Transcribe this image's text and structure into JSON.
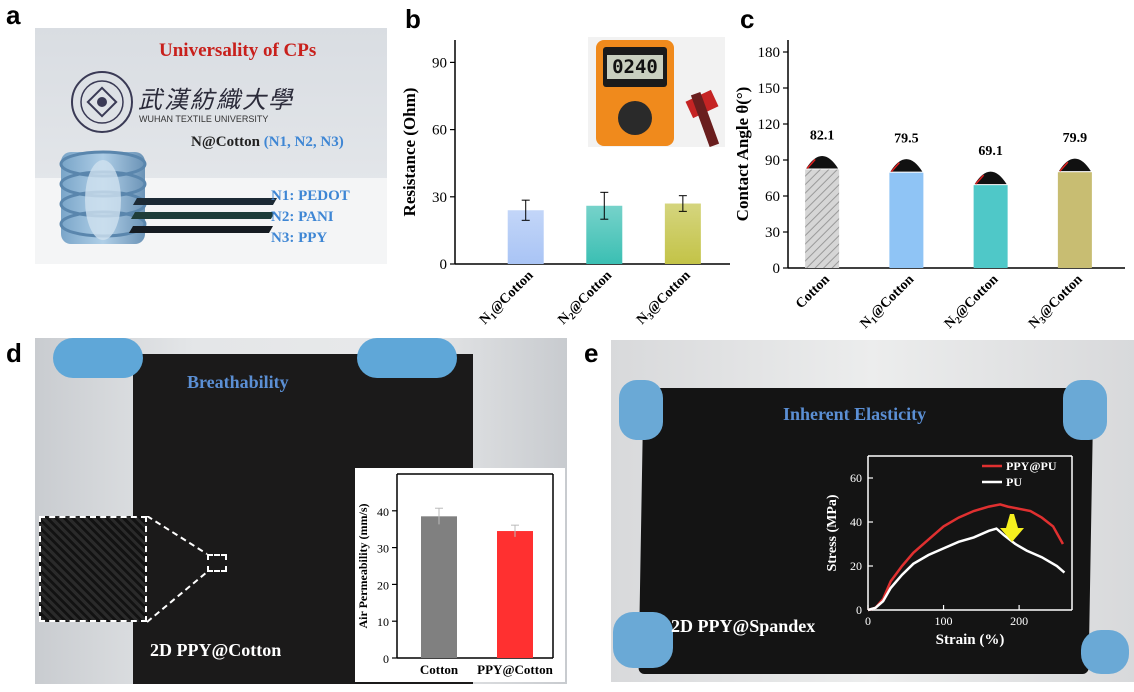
{
  "panels": {
    "a": {
      "letter": "a",
      "title": "Universality of CPs",
      "university_cn": "武漢紡織大學",
      "university_en": "WUHAN TEXTILE UNIVERSITY",
      "sample_label": "N@Cotton",
      "sample_sub": "(N1, N2, N3)",
      "legend": [
        "N1: PEDOT",
        "N2: PANI",
        "N3: PPY"
      ]
    },
    "b": {
      "letter": "b",
      "meter_reading": "0240"
    },
    "c": {
      "letter": "c"
    },
    "d": {
      "letter": "d",
      "title": "Breathability",
      "caption": "2D PPY@Cotton"
    },
    "e": {
      "letter": "e",
      "title": "Inherent Elasticity",
      "caption": "2D PPY@Spandex"
    }
  },
  "chart_data": [
    {
      "id": "b",
      "type": "bar",
      "categories": [
        "N1@Cotton",
        "N2@Cotton",
        "N3@Cotton"
      ],
      "category_parts": [
        [
          "N",
          "1",
          "@Cotton"
        ],
        [
          "N",
          "2",
          "@Cotton"
        ],
        [
          "N",
          "3",
          "@Cotton"
        ]
      ],
      "values": [
        24,
        26,
        27
      ],
      "errors": [
        4.5,
        6,
        3.5
      ],
      "ylabel": "Resistance (Ohm)",
      "ylim": [
        0,
        100
      ],
      "yticks": [
        0,
        30,
        60,
        90
      ],
      "colors": [
        "#a9c4f5",
        "#3bbfb3",
        "#c3c347"
      ]
    },
    {
      "id": "c",
      "type": "bar",
      "categories": [
        "Cotton",
        "N1@Cotton",
        "N2@Cotton",
        "N3@Cotton"
      ],
      "category_parts": [
        [
          "Cotton"
        ],
        [
          "N",
          "1",
          "@Cotton"
        ],
        [
          "N",
          "2",
          "@Cotton"
        ],
        [
          "N",
          "3",
          "@Cotton"
        ]
      ],
      "values": [
        82.1,
        79.5,
        69.1,
        79.9
      ],
      "data_labels": [
        "82.1",
        "79.5",
        "69.1",
        "79.9"
      ],
      "ylabel": "Contact Angle θ(°)",
      "ylim": [
        0,
        190
      ],
      "yticks": [
        0,
        30,
        60,
        90,
        120,
        150,
        180
      ],
      "colors": [
        "#c9c9c9",
        "#8fc4f5",
        "#4fc8c8",
        "#c8bd72"
      ]
    },
    {
      "id": "d",
      "type": "bar",
      "categories": [
        "Cotton",
        "PPY@Cotton"
      ],
      "values": [
        38.5,
        34.5
      ],
      "errors": [
        2.2,
        1.6
      ],
      "ylabel": "Air Permeability (mm/s)",
      "ylim": [
        0,
        50
      ],
      "yticks": [
        0,
        10,
        20,
        30,
        40
      ],
      "colors": [
        "#808080",
        "#ff3030"
      ]
    },
    {
      "id": "e",
      "type": "line",
      "xlabel": "Strain (%)",
      "ylabel": "Stress (MPa)",
      "xlim": [
        0,
        270
      ],
      "ylim": [
        0,
        70
      ],
      "xticks": [
        0,
        100,
        200
      ],
      "yticks": [
        0,
        20,
        40,
        60
      ],
      "series": [
        {
          "name": "PPY@PU",
          "color": "#e03030",
          "x": [
            0,
            10,
            20,
            30,
            45,
            60,
            80,
            100,
            120,
            140,
            160,
            175,
            185,
            200,
            215,
            230,
            245,
            258
          ],
          "y": [
            0,
            1,
            5,
            13,
            20,
            26,
            32,
            38,
            42,
            45,
            47,
            48,
            47,
            46,
            45,
            42,
            38,
            30
          ]
        },
        {
          "name": "PU",
          "color": "#ffffff",
          "x": [
            0,
            10,
            20,
            30,
            45,
            60,
            80,
            100,
            120,
            140,
            160,
            170,
            180,
            195,
            210,
            230,
            250,
            260
          ],
          "y": [
            0,
            1,
            4,
            10,
            16,
            21,
            25,
            28,
            31,
            33,
            36,
            37,
            34,
            30,
            27,
            24,
            20,
            17
          ]
        }
      ]
    }
  ]
}
